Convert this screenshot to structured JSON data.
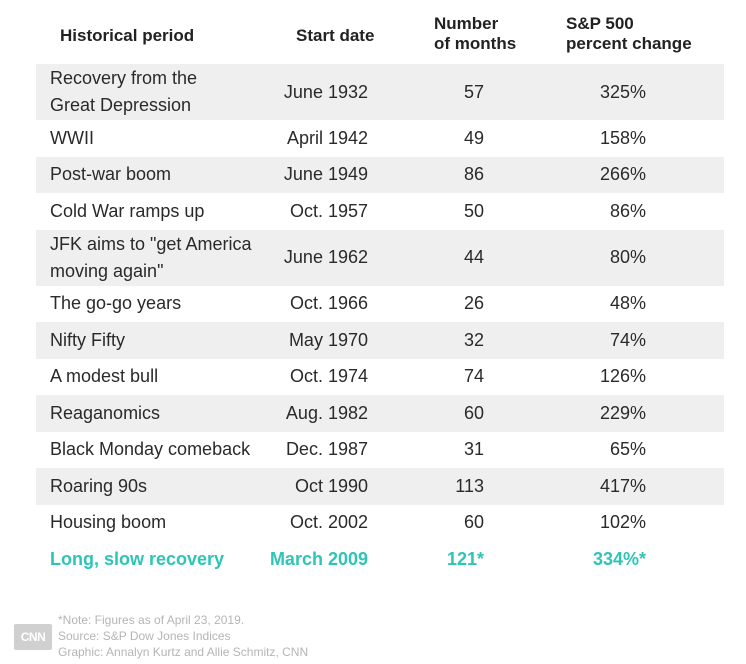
{
  "chart_data": {
    "type": "table",
    "columns": [
      "Historical period",
      "Start date",
      "Number of months",
      "S&P 500 percent change"
    ],
    "header": {
      "period": "Historical period",
      "start": "Start date",
      "months_line1": "Number",
      "months_line2": "of months",
      "change_line1": "S&P 500",
      "change_line2": "percent change"
    },
    "rows": [
      {
        "period_line1": "Recovery from the",
        "period_line2": "Great Depression",
        "start": "June 1932",
        "months": "57",
        "change": "325%"
      },
      {
        "period_line1": "WWII",
        "period_line2": "",
        "start": "April 1942",
        "months": "49",
        "change": "158%"
      },
      {
        "period_line1": "Post-war boom",
        "period_line2": "",
        "start": "June 1949",
        "months": "86",
        "change": "266%"
      },
      {
        "period_line1": "Cold War ramps up",
        "period_line2": "",
        "start": "Oct. 1957",
        "months": "50",
        "change": "86%"
      },
      {
        "period_line1": "JFK aims to \"get America",
        "period_line2": "moving again\"",
        "start": "June 1962",
        "months": "44",
        "change": "80%"
      },
      {
        "period_line1": "The go-go years",
        "period_line2": "",
        "start": "Oct. 1966",
        "months": "26",
        "change": "48%"
      },
      {
        "period_line1": "Nifty Fifty",
        "period_line2": "",
        "start": "May 1970",
        "months": "32",
        "change": "74%"
      },
      {
        "period_line1": "A modest bull",
        "period_line2": "",
        "start": "Oct. 1974",
        "months": "74",
        "change": "126%"
      },
      {
        "period_line1": "Reaganomics",
        "period_line2": "",
        "start": "Aug. 1982",
        "months": "60",
        "change": "229%"
      },
      {
        "period_line1": "Black Monday comeback",
        "period_line2": "",
        "start": "Dec. 1987",
        "months": "31",
        "change": "65%"
      },
      {
        "period_line1": "Roaring 90s",
        "period_line2": "",
        "start": "Oct 1990",
        "months": "113",
        "change": "417%"
      },
      {
        "period_line1": "Housing boom",
        "period_line2": "",
        "start": "Oct. 2002",
        "months": "60",
        "change": "102%"
      },
      {
        "period_line1": "Long, slow recovery",
        "period_line2": "",
        "start": "March 2009",
        "months": "121*",
        "change": "334%*",
        "highlight": true
      }
    ]
  },
  "footer": {
    "note": "*Note: Figures as of April 23, 2019.",
    "source": "Source: S&P Dow Jones Indices",
    "credit": "Graphic: Annalyn Kurtz and Allie Schmitz, CNN"
  },
  "logo_text": "CNN",
  "colors": {
    "highlight": "#2ec4b6",
    "row_shade": "#efefef",
    "footer_text": "#b5b5b5"
  }
}
